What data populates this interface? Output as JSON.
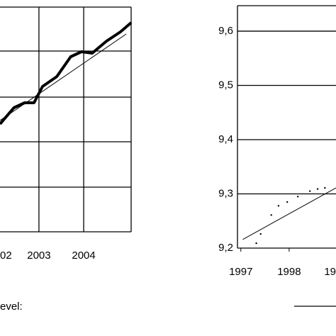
{
  "chart_data": [
    {
      "type": "line",
      "xlim": [
        2002.13,
        2005.06
      ],
      "xticks": [
        {
          "value": 2002,
          "label": "02"
        },
        2003,
        2004
      ],
      "ylim": [
        0,
        317
      ],
      "series": [
        {
          "color": "#000",
          "width": 4,
          "x": [
            2002.13,
            2002.44,
            2002.68,
            2002.89,
            2003.08,
            2003.4,
            2003.71,
            2003.95,
            2004.19,
            2004.51,
            2004.82,
            2005.06
          ],
          "values": [
            152,
            175,
            182,
            182,
            205,
            219,
            247,
            254,
            252,
            269,
            282,
            295
          ]
        },
        {
          "color": "#000",
          "width": 1,
          "x": [
            2002.13,
            2004.95
          ],
          "values": [
            157,
            279
          ]
        }
      ]
    },
    {
      "type": "line",
      "xlim": [
        1996.93,
        1998.97
      ],
      "xticks": [
        1997,
        1998,
        {
          "value": 1999,
          "label": "19"
        }
      ],
      "ylim": [
        9.2,
        9.647
      ],
      "yticks": [
        {
          "value": 9.2,
          "label": "9,2"
        },
        {
          "value": 9.3,
          "label": "9,3"
        },
        {
          "value": 9.4,
          "label": "9,4"
        },
        {
          "value": 9.5,
          "label": "9,5"
        },
        {
          "value": 9.6,
          "label": "9,6"
        }
      ],
      "series": [
        {
          "color": "#000",
          "width": 1,
          "x": [
            1997.04,
            1998.97
          ],
          "values": [
            9.216,
            9.311
          ]
        },
        {
          "color": "#000",
          "width": 0,
          "marker": "dot",
          "x": [
            1997.32,
            1997.41,
            1997.63,
            1997.78,
            1997.96,
            1998.18,
            1998.43,
            1998.59,
            1998.74
          ],
          "values": [
            9.209,
            9.226,
            9.261,
            9.278,
            9.285,
            9.295,
            9.305,
            9.309,
            9.311
          ]
        }
      ]
    }
  ],
  "caption": "evel:"
}
